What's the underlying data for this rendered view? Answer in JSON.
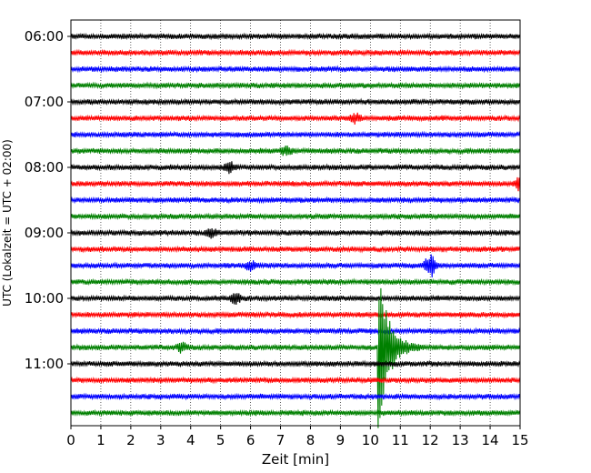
{
  "chart_data": {
    "type": "line",
    "subtype": "helicorder",
    "xlabel": "Zeit  [min]",
    "ylabel": "UTC (Lokalzeit = UTC + 02:00)",
    "xlim": [
      0,
      15
    ],
    "x_ticks": [
      0,
      1,
      2,
      3,
      4,
      5,
      6,
      7,
      8,
      9,
      10,
      11,
      12,
      13,
      14,
      15
    ],
    "y_tick_labels": [
      "06:00",
      "07:00",
      "08:00",
      "09:00",
      "10:00",
      "11:00"
    ],
    "grid": "vertical dotted",
    "trace_colors": [
      "#000000",
      "#ff0000",
      "#0000ff",
      "#008000"
    ],
    "traces": [
      "06:00",
      "06:15",
      "06:30",
      "06:45",
      "07:00",
      "07:15",
      "07:30",
      "07:45",
      "08:00",
      "08:15",
      "08:30",
      "08:45",
      "09:00",
      "09:15",
      "09:30",
      "09:45",
      "10:00",
      "10:15",
      "10:30",
      "10:45",
      "11:00",
      "11:15",
      "11:30",
      "11:45"
    ],
    "events": [
      {
        "trace": "07:15",
        "minute": 9.5,
        "level": 0.3
      },
      {
        "trace": "07:45",
        "minute": 7.2,
        "level": 0.3
      },
      {
        "trace": "08:00",
        "minute": 5.3,
        "level": 0.35
      },
      {
        "trace": "08:15",
        "minute": 15.0,
        "level": 0.5
      },
      {
        "trace": "09:00",
        "minute": 4.7,
        "level": 0.3
      },
      {
        "trace": "09:30",
        "minute": 6.0,
        "level": 0.3
      },
      {
        "trace": "09:30",
        "minute": 12.0,
        "level": 0.8
      },
      {
        "trace": "10:00",
        "minute": 5.5,
        "level": 0.35
      },
      {
        "trace": "10:45",
        "minute": 3.7,
        "level": 0.3
      },
      {
        "trace": "10:45",
        "minute": 10.3,
        "level": 3.0
      }
    ]
  }
}
